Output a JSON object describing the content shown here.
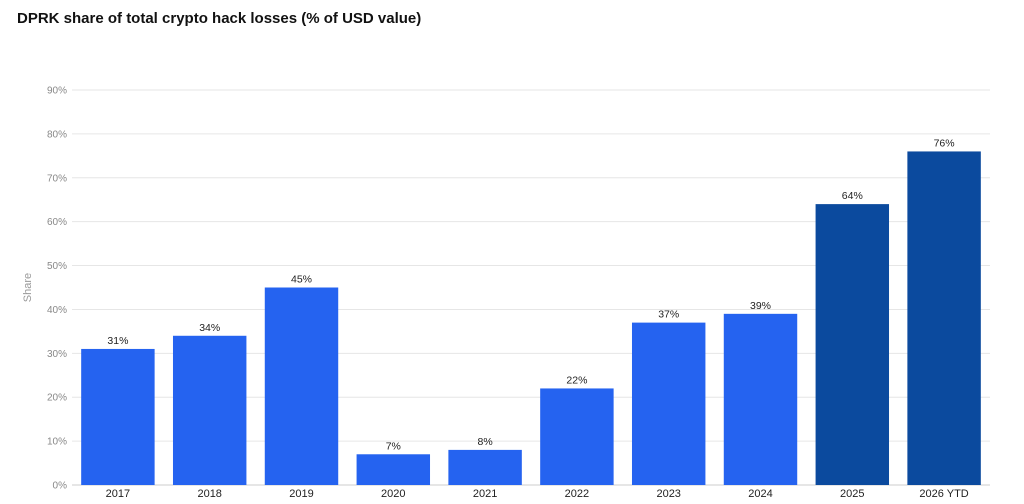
{
  "chart_data": {
    "type": "bar",
    "title": "DPRK share of total crypto hack losses (% of USD value)",
    "ylabel": "Share",
    "xlabel": "",
    "categories": [
      "2017",
      "2018",
      "2019",
      "2020",
      "2021",
      "2022",
      "2023",
      "2024",
      "2025",
      "2026 YTD"
    ],
    "values": [
      31,
      34,
      45,
      7,
      8,
      22,
      37,
      39,
      64,
      76
    ],
    "value_labels": [
      "31%",
      "34%",
      "45%",
      "7%",
      "8%",
      "22%",
      "37%",
      "39%",
      "64%",
      "76%"
    ],
    "ylim": [
      0,
      90
    ],
    "yticks": [
      0,
      10,
      20,
      30,
      40,
      50,
      60,
      70,
      80,
      90
    ],
    "ytick_labels": [
      "0%",
      "10%",
      "20%",
      "30%",
      "40%",
      "50%",
      "60%",
      "70%",
      "80%",
      "90%"
    ],
    "grid": true,
    "legend": "none",
    "colors": {
      "bar": "#2563f0",
      "bar_highlight": "#0b4a9e",
      "grid": "#e6e6e6",
      "axis": "#cccccc"
    },
    "highlighted_categories": [
      "2025",
      "2026 YTD"
    ]
  }
}
